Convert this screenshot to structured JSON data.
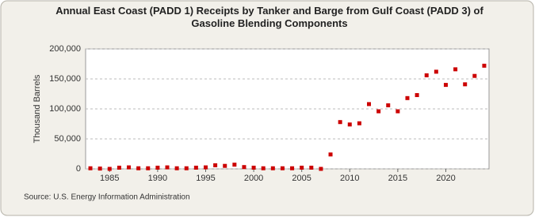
{
  "chart_data": {
    "type": "scatter",
    "title": "Annual East Coast (PADD 1) Receipts by Tanker and Barge from Gulf Coast (PADD 3) of Gasoline Blending Components",
    "y_label": "Thousand Barrels",
    "source": "Source: U.S. Energy Information Administration",
    "x": [
      1983,
      1984,
      1985,
      1986,
      1987,
      1988,
      1989,
      1990,
      1991,
      1992,
      1993,
      1994,
      1995,
      1996,
      1997,
      1998,
      1999,
      2000,
      2001,
      2002,
      2003,
      2004,
      2005,
      2006,
      2007,
      2008,
      2009,
      2010,
      2011,
      2012,
      2013,
      2014,
      2015,
      2016,
      2017,
      2018,
      2019,
      2020,
      2021,
      2022,
      2023,
      2024
    ],
    "values": [
      1000,
      500,
      0,
      2000,
      2500,
      1000,
      1000,
      2000,
      2500,
      1000,
      1000,
      2000,
      2500,
      6000,
      5000,
      7000,
      3000,
      2000,
      1000,
      1000,
      1000,
      1000,
      2000,
      2000,
      0,
      24000,
      78000,
      74000,
      76000,
      108000,
      96000,
      106000,
      96000,
      118000,
      123000,
      156000,
      162000,
      140000,
      166000,
      141000,
      155000,
      172000
    ],
    "color": "#cc0000",
    "xlim": [
      1982.5,
      2024.5
    ],
    "xticks": [
      1985,
      1990,
      1995,
      2000,
      2005,
      2010,
      2015,
      2020
    ],
    "ylim": [
      0,
      200000
    ],
    "yticks": [
      0,
      {
        "value": 50000,
        "label": "50,000"
      },
      {
        "value": 100000,
        "label": "100,000"
      },
      {
        "value": 150000,
        "label": "150,000"
      },
      {
        "value": 200000,
        "label": "200,000"
      }
    ],
    "grid": true
  }
}
